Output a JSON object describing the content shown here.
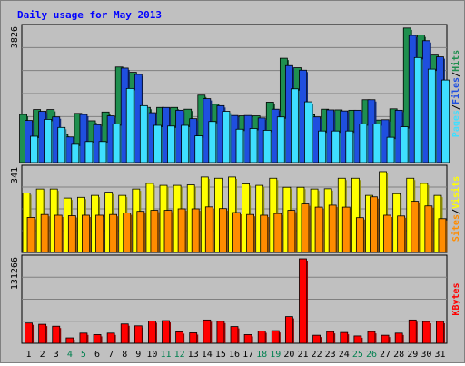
{
  "chart_data": {
    "type": "bar",
    "title": "Daily usage for May 2013",
    "categories": [
      "1",
      "2",
      "3",
      "4",
      "5",
      "6",
      "7",
      "8",
      "9",
      "10",
      "11",
      "12",
      "13",
      "14",
      "15",
      "16",
      "17",
      "18",
      "19",
      "20",
      "21",
      "22",
      "23",
      "24",
      "25",
      "26",
      "27",
      "28",
      "29",
      "30",
      "31"
    ],
    "weekend_days": [
      "4",
      "5",
      "11",
      "12",
      "18",
      "19",
      "25",
      "26"
    ],
    "panels": [
      {
        "id": "hits_files_pages",
        "ymax_label": "3826",
        "ylim": [
          0,
          3826
        ],
        "grid": true,
        "legend": [
          "Pages",
          "Files",
          "Hits"
        ],
        "series": [
          {
            "name": "Hits",
            "color": "#1f8f4f",
            "values": [
              1370,
              1510,
              1510,
              800,
              1400,
              1190,
              1440,
              2720,
              2570,
              1570,
              1570,
              1570,
              1520,
              1920,
              1660,
              1330,
              1330,
              1330,
              1720,
              2970,
              2700,
              1360,
              1520,
              1500,
              1490,
              1790,
              1210,
              1530,
              3830,
              3630,
              3060
            ]
          },
          {
            "name": "Files",
            "color": "#1f4fdf",
            "values": [
              1200,
              1460,
              1300,
              730,
              1370,
              1080,
              1330,
              2690,
              2510,
              1420,
              1570,
              1490,
              1250,
              1820,
              1620,
              1340,
              1340,
              1270,
              1520,
              2760,
              2630,
              1300,
              1500,
              1470,
              1490,
              1790,
              1220,
              1490,
              3620,
              3470,
              3010
            ]
          },
          {
            "name": "Pages",
            "color": "#3fdfff",
            "values": [
              750,
              1230,
              1000,
              520,
              600,
              600,
              1100,
              2110,
              1620,
              1060,
              1040,
              1060,
              760,
              1170,
              1460,
              950,
              970,
              920,
              1300,
              2100,
              1730,
              900,
              900,
              900,
              1100,
              1100,
              720,
              1020,
              2990,
              2660,
              2350
            ]
          }
        ]
      },
      {
        "id": "visits_sites",
        "ymax_label": "341",
        "ylim": [
          0,
          341
        ],
        "grid": true,
        "legend": [
          "Sites",
          "Visits"
        ],
        "series": [
          {
            "name": "Visits",
            "color": "#ffff00",
            "values": [
              243,
              259,
              259,
              222,
              225,
              233,
              246,
              233,
              259,
              282,
              274,
              274,
              276,
              308,
              303,
              308,
              280,
              274,
              303,
              266,
              266,
              259,
              260,
              303,
              303,
              233,
              330,
              240,
              303,
              282,
              233
            ]
          },
          {
            "name": "Sites",
            "color": "#ff8c00",
            "values": [
              143,
              155,
              152,
              150,
              152,
              152,
              155,
              161,
              168,
              172,
              172,
              178,
              178,
              186,
              179,
              163,
              155,
              152,
              159,
              172,
              198,
              185,
              193,
              185,
              142,
              227,
              152,
              149,
              209,
              190,
              138
            ]
          }
        ]
      },
      {
        "id": "kbytes",
        "ymax_label": "131266",
        "ylim": [
          0,
          131266
        ],
        "grid": true,
        "legend": [
          "KBytes"
        ],
        "series": [
          {
            "name": "KBytes",
            "color": "#ff0000",
            "values": [
              31500,
              29500,
              26500,
              8400,
              15800,
              13500,
              15800,
              30000,
              27100,
              34700,
              35200,
              17800,
              16300,
              36200,
              34200,
              26000,
              13500,
              19100,
              19600,
              41500,
              131266,
              12500,
              18200,
              16800,
              11400,
              18200,
              12500,
              15800,
              36200,
              33800,
              34000
            ]
          }
        ]
      }
    ]
  }
}
